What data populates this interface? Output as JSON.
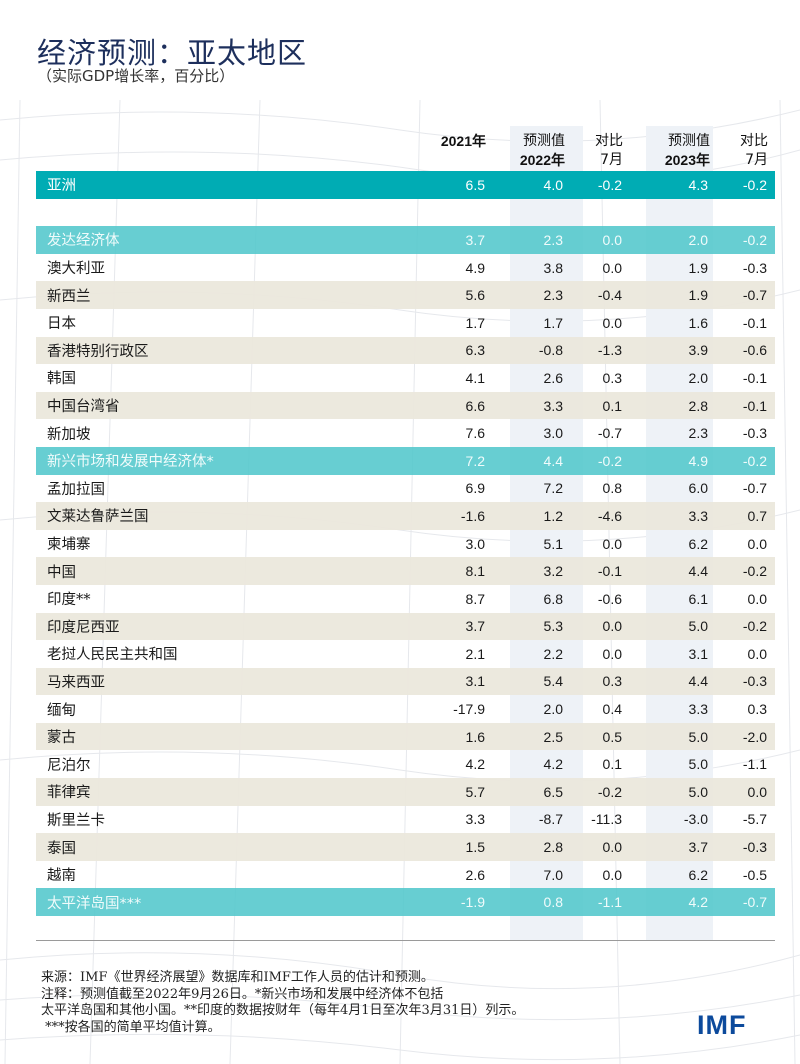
{
  "header": {
    "title": "经济预测：亚太地区",
    "subtitle": "（实际GDP增长率，百分比）"
  },
  "columns": [
    {
      "line1": "",
      "line2": "2021年"
    },
    {
      "line1": "预测值",
      "line2": "2022年"
    },
    {
      "line1": "对比",
      "line2": "7月"
    },
    {
      "line1": "预测值",
      "line2": "2023年"
    },
    {
      "line1": "对比",
      "line2": "7月"
    }
  ],
  "rows": [
    {
      "type": "region-dark",
      "name": "亚洲",
      "values": [
        "6.5",
        "4.0",
        "-0.2",
        "4.3",
        "-0.2"
      ]
    },
    {
      "type": "blank",
      "name": "",
      "values": [
        "",
        "",
        "",
        "",
        ""
      ]
    },
    {
      "type": "region-light",
      "name": "发达经济体",
      "values": [
        "3.7",
        "2.3",
        "0.0",
        "2.0",
        "-0.2"
      ]
    },
    {
      "type": "white",
      "name": "澳大利亚",
      "values": [
        "4.9",
        "3.8",
        "0.0",
        "1.9",
        "-0.3"
      ]
    },
    {
      "type": "alt",
      "name": "新西兰",
      "values": [
        "5.6",
        "2.3",
        "-0.4",
        "1.9",
        "-0.7"
      ]
    },
    {
      "type": "white",
      "name": "日本",
      "values": [
        "1.7",
        "1.7",
        "0.0",
        "1.6",
        "-0.1"
      ]
    },
    {
      "type": "alt",
      "name": "香港特别行政区",
      "values": [
        "6.3",
        "-0.8",
        "-1.3",
        "3.9",
        "-0.6"
      ]
    },
    {
      "type": "white",
      "name": "韩国",
      "values": [
        "4.1",
        "2.6",
        "0.3",
        "2.0",
        "-0.1"
      ]
    },
    {
      "type": "alt",
      "name": "中国台湾省",
      "values": [
        "6.6",
        "3.3",
        "0.1",
        "2.8",
        "-0.1"
      ]
    },
    {
      "type": "white",
      "name": "新加坡",
      "values": [
        "7.6",
        "3.0",
        "-0.7",
        "2.3",
        "-0.3"
      ]
    },
    {
      "type": "region-light",
      "name": "新兴市场和发展中经济体*",
      "values": [
        "7.2",
        "4.4",
        "-0.2",
        "4.9",
        "-0.2"
      ]
    },
    {
      "type": "white",
      "name": "孟加拉国",
      "values": [
        "6.9",
        "7.2",
        "0.8",
        "6.0",
        "-0.7"
      ]
    },
    {
      "type": "alt",
      "name": "文莱达鲁萨兰国",
      "values": [
        "-1.6",
        "1.2",
        "-4.6",
        "3.3",
        "0.7"
      ]
    },
    {
      "type": "white",
      "name": "柬埔寨",
      "values": [
        "3.0",
        "5.1",
        "0.0",
        "6.2",
        "0.0"
      ]
    },
    {
      "type": "alt",
      "name": "中国",
      "values": [
        "8.1",
        "3.2",
        "-0.1",
        "4.4",
        "-0.2"
      ]
    },
    {
      "type": "white",
      "name": "印度**",
      "values": [
        "8.7",
        "6.8",
        "-0.6",
        "6.1",
        "0.0"
      ]
    },
    {
      "type": "alt",
      "name": "印度尼西亚",
      "values": [
        "3.7",
        "5.3",
        "0.0",
        "5.0",
        "-0.2"
      ]
    },
    {
      "type": "white",
      "name": "老挝人民民主共和国",
      "values": [
        "2.1",
        "2.2",
        "0.0",
        "3.1",
        "0.0"
      ]
    },
    {
      "type": "alt",
      "name": "马来西亚",
      "values": [
        "3.1",
        "5.4",
        "0.3",
        "4.4",
        "-0.3"
      ]
    },
    {
      "type": "white",
      "name": "缅甸",
      "values": [
        "-17.9",
        "2.0",
        "0.4",
        "3.3",
        "0.3"
      ]
    },
    {
      "type": "alt",
      "name": "蒙古",
      "values": [
        "1.6",
        "2.5",
        "0.5",
        "5.0",
        "-2.0"
      ]
    },
    {
      "type": "white",
      "name": "尼泊尔",
      "values": [
        "4.2",
        "4.2",
        "0.1",
        "5.0",
        "-1.1"
      ]
    },
    {
      "type": "alt",
      "name": "菲律宾",
      "values": [
        "5.7",
        "6.5",
        "-0.2",
        "5.0",
        "0.0"
      ]
    },
    {
      "type": "white",
      "name": "斯里兰卡",
      "values": [
        "3.3",
        "-8.7",
        "-11.3",
        "-3.0",
        "-5.7"
      ]
    },
    {
      "type": "alt",
      "name": "泰国",
      "values": [
        "1.5",
        "2.8",
        "0.0",
        "3.7",
        "-0.3"
      ]
    },
    {
      "type": "white",
      "name": "越南",
      "values": [
        "2.6",
        "7.0",
        "0.0",
        "6.2",
        "-0.5"
      ]
    },
    {
      "type": "region-light",
      "name": "太平洋岛国***",
      "values": [
        "-1.9",
        "0.8",
        "-1.1",
        "4.2",
        "-0.7"
      ]
    }
  ],
  "notes": [
    "来源：IMF《世界经济展望》数据库和IMF工作人员的估计和预测。",
    "注释：预测值截至2022年9月26日。*新兴市场和发展中经济体不包括",
    "太平洋岛国和其他小国。**印度的数据按财年（每年4月1日至次年3月31日）列示。",
    " ***按各国的简单平均值计算。"
  ],
  "logo": "IMF",
  "colors": {
    "title": "#1d2f5c",
    "region_dark": "#00acb4",
    "region_light": "#52c7cc",
    "alt_row": "#ebe7dc",
    "forecast_shade": "#eef2f7",
    "logo": "#0c4a9c"
  }
}
